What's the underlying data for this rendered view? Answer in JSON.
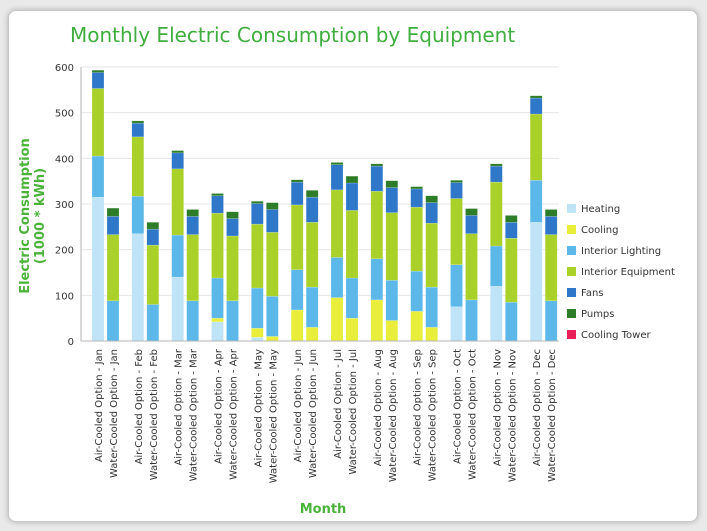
{
  "chart_data": {
    "type": "bar",
    "stacked": true,
    "title": "Monthly Electric Consumption by Equipment",
    "xlabel": "Month",
    "ylabel": "Electric Consumption\n(1000 * kWh)",
    "ylim": [
      0,
      600
    ],
    "yticks": [
      0,
      100,
      200,
      300,
      400,
      500,
      600
    ],
    "legend_position": "right",
    "categories": [
      "Air-Cooled Option - Jan",
      "Water-Cooled Option - Jan",
      "Air-Cooled Option - Feb",
      "Water-Cooled Option - Feb",
      "Air-Cooled Option - Mar",
      "Water-Cooled Option - Mar",
      "Air-Cooled Option - Apr",
      "Water-Cooled Option - Apr",
      "Air-Cooled Option - May",
      "Water-Cooled Option - May",
      "Air-Cooled Option - Jun",
      "Water-Cooled Option - Jun",
      "Air-Cooled Option - Jul",
      "Water-Cooled Option - Jul",
      "Air-Cooled Option - Aug",
      "Water-Cooled Option - Aug",
      "Air-Cooled Option - Sep",
      "Water-Cooled Option - Sep",
      "Air-Cooled Option - Oct",
      "Water-Cooled Option - Oct",
      "Air-Cooled Option - Nov",
      "Water-Cooled Option - Nov",
      "Air-Cooled Option - Dec",
      "Water-Cooled Option - Dec"
    ],
    "series": [
      {
        "name": "Heating",
        "color": "#bfe3f7",
        "values": [
          315,
          0,
          235,
          0,
          140,
          0,
          42,
          0,
          8,
          0,
          0,
          0,
          0,
          0,
          0,
          0,
          0,
          0,
          75,
          0,
          120,
          0,
          260,
          0
        ]
      },
      {
        "name": "Cooling",
        "color": "#e8ee3a",
        "values": [
          0,
          0,
          0,
          0,
          0,
          0,
          8,
          0,
          20,
          10,
          68,
          30,
          95,
          50,
          90,
          45,
          65,
          30,
          0,
          0,
          0,
          0,
          0,
          0
        ]
      },
      {
        "name": "Interior Lighting",
        "color": "#5bb8e8",
        "values": [
          90,
          88,
          82,
          80,
          92,
          88,
          88,
          88,
          88,
          88,
          88,
          88,
          88,
          88,
          90,
          88,
          88,
          88,
          92,
          90,
          88,
          85,
          92,
          88
        ]
      },
      {
        "name": "Interior Equipment",
        "color": "#a9d12a",
        "values": [
          148,
          145,
          130,
          130,
          145,
          145,
          142,
          142,
          140,
          140,
          142,
          142,
          148,
          148,
          148,
          148,
          140,
          140,
          145,
          145,
          140,
          140,
          145,
          145
        ]
      },
      {
        "name": "Fans",
        "color": "#2f78c9",
        "values": [
          35,
          40,
          30,
          35,
          35,
          40,
          38,
          38,
          45,
          50,
          50,
          55,
          55,
          60,
          55,
          55,
          40,
          45,
          35,
          40,
          35,
          35,
          35,
          40
        ]
      },
      {
        "name": "Pumps",
        "color": "#2d7d28",
        "values": [
          5,
          18,
          5,
          15,
          5,
          15,
          5,
          15,
          5,
          15,
          5,
          15,
          5,
          15,
          5,
          15,
          5,
          15,
          5,
          15,
          5,
          15,
          5,
          15
        ]
      },
      {
        "name": "Cooling Tower",
        "color": "#e8205a",
        "values": [
          0,
          0,
          0,
          0,
          0,
          0,
          0,
          0,
          0,
          0,
          0,
          0,
          0,
          0,
          0,
          0,
          0,
          0,
          0,
          0,
          0,
          0,
          0,
          0
        ]
      }
    ]
  },
  "colors": {
    "title": "#3fae3f",
    "axis_title": "#4bb33a",
    "grid": "#e6e6e6",
    "axis": "#b5b5b5"
  }
}
